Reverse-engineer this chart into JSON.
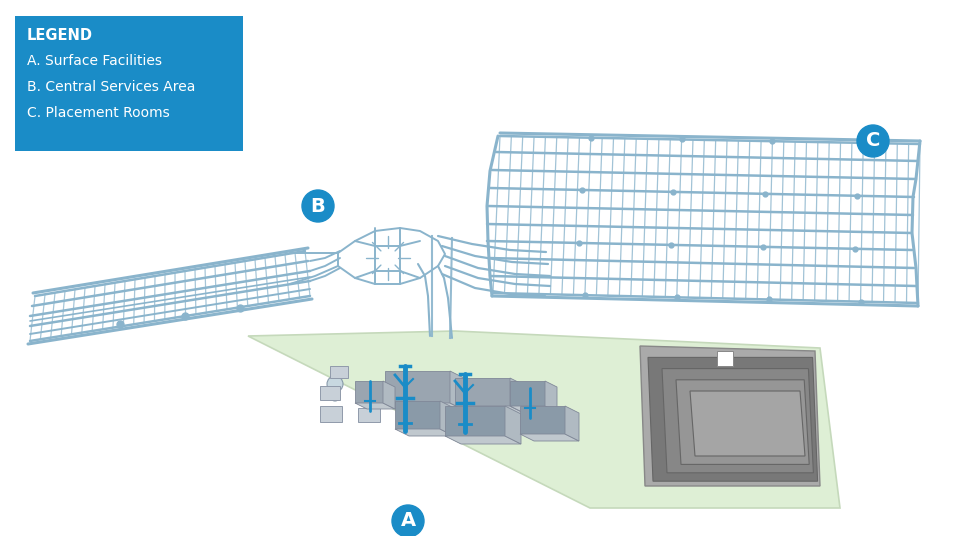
{
  "background_color": "#ffffff",
  "label_circle_color": "#1a8cc7",
  "label_text_color": "#ffffff",
  "label_A": "A",
  "label_B": "B",
  "label_C": "C",
  "legend_bg": "#1a8cc7",
  "legend_text_color": "#ffffff",
  "legend_title": "LEGEND",
  "legend_items": [
    "A. Surface Facilities",
    "B. Central Services Area",
    "C. Placement Rooms"
  ],
  "surface_fill": "#deefd5",
  "surface_stroke": "#c5d9bb",
  "tunnel_color": "#8ab4cc",
  "tunnel_lw": 1.3,
  "shaft_color": "#8ab4cc",
  "dark_struct_fill": "#888888",
  "dark_struct_edge": "#555555"
}
